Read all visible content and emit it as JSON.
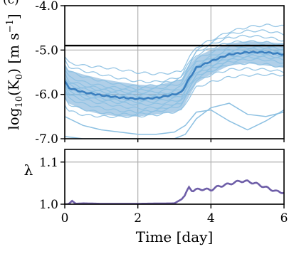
{
  "chart_data": [
    {
      "type": "line",
      "panel": "top",
      "title_partial": "(c)",
      "ylabel": "log₁₀(K₀) [m s⁻¹]",
      "ylabel_parts": {
        "pre": "log",
        "sub": "10",
        "mid": "(K",
        "sub2": "0",
        "post": ") [m s",
        "sup": "−1",
        "end": "]"
      },
      "xlim": [
        0,
        6
      ],
      "ylim": [
        -7.0,
        -4.0
      ],
      "yticks": [
        "-4.0",
        "-5.0",
        "-6.0",
        "-7.0"
      ],
      "grid": true,
      "reference_line": {
        "y": -4.9,
        "color": "#000000"
      },
      "band": {
        "x": [
          0,
          0.1,
          0.5,
          1,
          1.5,
          2,
          2.5,
          3,
          3.2,
          3.4,
          3.6,
          4,
          4.5,
          5,
          5.5,
          6
        ],
        "upper": [
          -5.3,
          -5.45,
          -5.55,
          -5.65,
          -5.72,
          -5.78,
          -5.8,
          -5.7,
          -5.65,
          -5.35,
          -5.15,
          -5.0,
          -4.85,
          -4.8,
          -4.82,
          -4.85
        ],
        "lower": [
          -6.1,
          -6.2,
          -6.35,
          -6.45,
          -6.5,
          -6.5,
          -6.45,
          -6.4,
          -6.35,
          -6.05,
          -5.75,
          -5.55,
          -5.35,
          -5.3,
          -5.35,
          -5.4
        ]
      },
      "mean": {
        "x": [
          0,
          0.1,
          0.5,
          1,
          1.5,
          2,
          2.5,
          3,
          3.2,
          3.4,
          3.6,
          4,
          4.5,
          5,
          5.5,
          6
        ],
        "y": [
          -5.7,
          -5.85,
          -5.95,
          -6.02,
          -6.07,
          -6.1,
          -6.08,
          -6.0,
          -5.95,
          -5.65,
          -5.4,
          -5.25,
          -5.1,
          -5.05,
          -5.05,
          -5.1
        ]
      },
      "ensemble_offsets": [
        0.55,
        0.42,
        0.33,
        0.25,
        0.18,
        0.12,
        0.07,
        0.02,
        -0.03,
        -0.08,
        -0.13,
        -0.19,
        -0.26,
        -0.34,
        -0.45
      ],
      "outliers": [
        {
          "x": [
            0,
            0.5,
            1,
            1.5,
            2,
            2.5,
            3,
            3.3,
            3.6,
            4,
            4.5,
            5,
            5.5,
            6
          ],
          "y": [
            -6.95,
            -7.0,
            -7.0,
            -7.0,
            -7.0,
            -7.0,
            -7.0,
            -6.9,
            -6.55,
            -6.3,
            -6.2,
            -6.45,
            -6.5,
            -6.4
          ]
        },
        {
          "x": [
            0,
            0.5,
            1,
            1.5,
            2,
            2.5,
            3,
            3.3,
            3.6,
            4,
            4.5,
            5,
            5.5,
            6
          ],
          "y": [
            -6.5,
            -6.7,
            -6.8,
            -6.85,
            -6.9,
            -6.9,
            -6.85,
            -6.7,
            -6.4,
            -6.35,
            -6.6,
            -6.8,
            -6.6,
            -6.35
          ]
        }
      ],
      "colors": {
        "band": "#6fa8d6",
        "mean": "#3a7fbf",
        "ensemble": "#8cc0e2"
      }
    },
    {
      "type": "line",
      "panel": "bottom",
      "ylabel": "λ",
      "xlabel": "Time [day]",
      "xlim": [
        0,
        6
      ],
      "ylim": [
        1.0,
        1.13
      ],
      "xticks": [
        "0",
        "2",
        "4",
        "6"
      ],
      "yticks": [
        "1.1",
        "1.0"
      ],
      "grid": true,
      "series": [
        {
          "x": [
            0,
            0.1,
            0.2,
            0.3,
            0.5,
            1,
            2,
            3,
            3.2,
            3.3,
            3.4,
            3.5,
            3.7,
            4,
            4.2,
            4.5,
            4.8,
            5,
            5.2,
            5.5,
            5.8,
            6
          ],
          "y": [
            1.0,
            1.0,
            1.008,
            1.001,
            1.002,
            1.001,
            1.001,
            1.002,
            1.012,
            1.022,
            1.04,
            1.032,
            1.036,
            1.034,
            1.042,
            1.048,
            1.055,
            1.054,
            1.05,
            1.04,
            1.03,
            1.028
          ],
          "color": "#6e5ea8"
        }
      ]
    }
  ]
}
